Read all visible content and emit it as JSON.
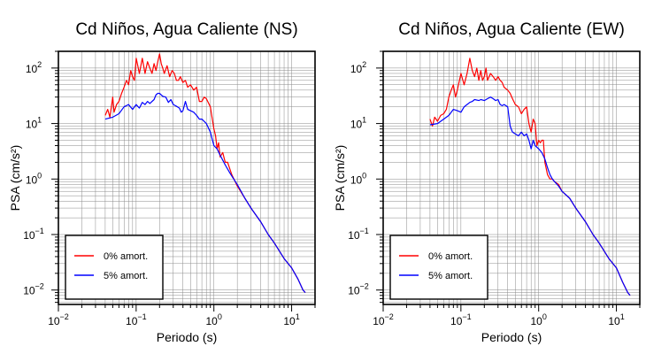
{
  "chart_data": [
    {
      "type": "line",
      "title": "Cd Niños, Agua Caliente (NS)",
      "xlabel": "Periodo (s)",
      "ylabel": "PSA (cm/s²)",
      "xscale": "log",
      "yscale": "log",
      "xlim": [
        0.01,
        20
      ],
      "ylim": [
        0.0055,
        200
      ],
      "grid": true,
      "legend_position": "lower-left",
      "x_ticks": [
        {
          "base": "10",
          "exp": "−2"
        },
        {
          "base": "10",
          "exp": "−1"
        },
        {
          "base": "10",
          "exp": "0"
        },
        {
          "base": "10",
          "exp": "1"
        }
      ],
      "y_ticks": [
        {
          "base": "10",
          "exp": "−2"
        },
        {
          "base": "10",
          "exp": "−1"
        },
        {
          "base": "10",
          "exp": "0"
        },
        {
          "base": "10",
          "exp": "1"
        },
        {
          "base": "10",
          "exp": "2"
        }
      ],
      "series": [
        {
          "name": "0% amort.",
          "color": "#ff0000",
          "points": [
            [
              0.04,
              14
            ],
            [
              0.043,
              18
            ],
            [
              0.046,
              13
            ],
            [
              0.05,
              30
            ],
            [
              0.052,
              16
            ],
            [
              0.056,
              22
            ],
            [
              0.06,
              25
            ],
            [
              0.065,
              35
            ],
            [
              0.07,
              45
            ],
            [
              0.075,
              60
            ],
            [
              0.08,
              50
            ],
            [
              0.085,
              90
            ],
            [
              0.09,
              70
            ],
            [
              0.095,
              60
            ],
            [
              0.1,
              150
            ],
            [
              0.105,
              110
            ],
            [
              0.11,
              80
            ],
            [
              0.12,
              150
            ],
            [
              0.13,
              80
            ],
            [
              0.14,
              130
            ],
            [
              0.15,
              100
            ],
            [
              0.16,
              80
            ],
            [
              0.17,
              120
            ],
            [
              0.18,
              90
            ],
            [
              0.19,
              130
            ],
            [
              0.2,
              180
            ],
            [
              0.21,
              120
            ],
            [
              0.22,
              100
            ],
            [
              0.23,
              80
            ],
            [
              0.25,
              110
            ],
            [
              0.27,
              70
            ],
            [
              0.29,
              90
            ],
            [
              0.31,
              80
            ],
            [
              0.33,
              60
            ],
            [
              0.35,
              60
            ],
            [
              0.37,
              70
            ],
            [
              0.4,
              55
            ],
            [
              0.43,
              60
            ],
            [
              0.46,
              45
            ],
            [
              0.5,
              50
            ],
            [
              0.55,
              40
            ],
            [
              0.6,
              45
            ],
            [
              0.65,
              25
            ],
            [
              0.7,
              25
            ],
            [
              0.75,
              30
            ],
            [
              0.8,
              28
            ],
            [
              0.9,
              20
            ],
            [
              1.0,
              8
            ],
            [
              1.05,
              6
            ],
            [
              1.1,
              3.5
            ],
            [
              1.15,
              4.5
            ],
            [
              1.2,
              2.5
            ],
            [
              1.3,
              3
            ],
            [
              1.4,
              2
            ],
            [
              1.5,
              2
            ],
            [
              1.7,
              1.2
            ],
            [
              2,
              0.75
            ],
            [
              2.5,
              0.45
            ],
            [
              3,
              0.3
            ],
            [
              4,
              0.17
            ],
            [
              5,
              0.1
            ],
            [
              6,
              0.07
            ],
            [
              7,
              0.05
            ],
            [
              8,
              0.037
            ],
            [
              10,
              0.025
            ],
            [
              12,
              0.016
            ],
            [
              14,
              0.01
            ],
            [
              15,
              0.009
            ]
          ]
        },
        {
          "name": "5% amort.",
          "color": "#0000ff",
          "points": [
            [
              0.04,
              12
            ],
            [
              0.05,
              13
            ],
            [
              0.06,
              15
            ],
            [
              0.07,
              20
            ],
            [
              0.08,
              22
            ],
            [
              0.09,
              18
            ],
            [
              0.1,
              22
            ],
            [
              0.11,
              19
            ],
            [
              0.12,
              24
            ],
            [
              0.13,
              22
            ],
            [
              0.14,
              25
            ],
            [
              0.15,
              23
            ],
            [
              0.17,
              27
            ],
            [
              0.18,
              33
            ],
            [
              0.19,
              35
            ],
            [
              0.2,
              35
            ],
            [
              0.22,
              31
            ],
            [
              0.24,
              30
            ],
            [
              0.26,
              24
            ],
            [
              0.28,
              27
            ],
            [
              0.3,
              22
            ],
            [
              0.32,
              21
            ],
            [
              0.34,
              20
            ],
            [
              0.36,
              19
            ],
            [
              0.38,
              16
            ],
            [
              0.4,
              17
            ],
            [
              0.43,
              25
            ],
            [
              0.46,
              18
            ],
            [
              0.5,
              17
            ],
            [
              0.55,
              16
            ],
            [
              0.6,
              14
            ],
            [
              0.65,
              12
            ],
            [
              0.7,
              12
            ],
            [
              0.8,
              10
            ],
            [
              0.9,
              7
            ],
            [
              1.0,
              4
            ],
            [
              1.1,
              3.5
            ],
            [
              1.2,
              2.7
            ],
            [
              1.4,
              1.8
            ],
            [
              1.6,
              1.3
            ],
            [
              1.8,
              1
            ],
            [
              2,
              0.8
            ],
            [
              2.5,
              0.45
            ],
            [
              3,
              0.3
            ],
            [
              4,
              0.17
            ],
            [
              5,
              0.1
            ],
            [
              6,
              0.07
            ],
            [
              7,
              0.05
            ],
            [
              8,
              0.037
            ],
            [
              10,
              0.025
            ],
            [
              12,
              0.016
            ],
            [
              14,
              0.01
            ],
            [
              15,
              0.009
            ]
          ]
        }
      ]
    },
    {
      "type": "line",
      "title": "Cd Niños, Agua Caliente (EW)",
      "xlabel": "Periodo (s)",
      "ylabel": "PSA (cm/s²)",
      "xscale": "log",
      "yscale": "log",
      "xlim": [
        0.01,
        20
      ],
      "ylim": [
        0.0055,
        200
      ],
      "grid": true,
      "legend_position": "lower-left",
      "x_ticks": [
        {
          "base": "10",
          "exp": "−2"
        },
        {
          "base": "10",
          "exp": "−1"
        },
        {
          "base": "10",
          "exp": "0"
        },
        {
          "base": "10",
          "exp": "1"
        }
      ],
      "y_ticks": [
        {
          "base": "10",
          "exp": "−2"
        },
        {
          "base": "10",
          "exp": "−1"
        },
        {
          "base": "10",
          "exp": "0"
        },
        {
          "base": "10",
          "exp": "1"
        },
        {
          "base": "10",
          "exp": "2"
        }
      ],
      "series": [
        {
          "name": "0% amort.",
          "color": "#ff0000",
          "points": [
            [
              0.04,
              12
            ],
            [
              0.043,
              9
            ],
            [
              0.046,
              13
            ],
            [
              0.05,
              11
            ],
            [
              0.055,
              14
            ],
            [
              0.06,
              15
            ],
            [
              0.065,
              18
            ],
            [
              0.07,
              30
            ],
            [
              0.075,
              40
            ],
            [
              0.08,
              50
            ],
            [
              0.085,
              30
            ],
            [
              0.09,
              40
            ],
            [
              0.1,
              80
            ],
            [
              0.11,
              50
            ],
            [
              0.12,
              80
            ],
            [
              0.13,
              150
            ],
            [
              0.14,
              90
            ],
            [
              0.15,
              70
            ],
            [
              0.16,
              100
            ],
            [
              0.17,
              60
            ],
            [
              0.18,
              90
            ],
            [
              0.19,
              60
            ],
            [
              0.2,
              70
            ],
            [
              0.21,
              100
            ],
            [
              0.22,
              60
            ],
            [
              0.24,
              80
            ],
            [
              0.26,
              70
            ],
            [
              0.28,
              60
            ],
            [
              0.3,
              70
            ],
            [
              0.32,
              60
            ],
            [
              0.34,
              55
            ],
            [
              0.36,
              45
            ],
            [
              0.4,
              40
            ],
            [
              0.43,
              35
            ],
            [
              0.46,
              28
            ],
            [
              0.5,
              22
            ],
            [
              0.55,
              20
            ],
            [
              0.6,
              15
            ],
            [
              0.65,
              18
            ],
            [
              0.7,
              20
            ],
            [
              0.75,
              10
            ],
            [
              0.8,
              7
            ],
            [
              0.85,
              12
            ],
            [
              0.9,
              10
            ],
            [
              0.95,
              4
            ],
            [
              1.0,
              5
            ],
            [
              1.05,
              4.5
            ],
            [
              1.1,
              5
            ],
            [
              1.15,
              5
            ],
            [
              1.2,
              2
            ],
            [
              1.3,
              1.2
            ],
            [
              1.4,
              1
            ],
            [
              1.5,
              1
            ],
            [
              1.6,
              0.9
            ],
            [
              1.8,
              0.8
            ],
            [
              2,
              0.6
            ],
            [
              2.5,
              0.45
            ],
            [
              3,
              0.3
            ],
            [
              4,
              0.17
            ],
            [
              5,
              0.1
            ],
            [
              6,
              0.07
            ],
            [
              7,
              0.05
            ],
            [
              8,
              0.037
            ],
            [
              10,
              0.025
            ],
            [
              12,
              0.014
            ],
            [
              14,
              0.009
            ],
            [
              15,
              0.008
            ]
          ]
        },
        {
          "name": "5% amort.",
          "color": "#0000ff",
          "points": [
            [
              0.04,
              9.5
            ],
            [
              0.05,
              10
            ],
            [
              0.06,
              12
            ],
            [
              0.07,
              14
            ],
            [
              0.08,
              18
            ],
            [
              0.09,
              17
            ],
            [
              0.1,
              16
            ],
            [
              0.11,
              20
            ],
            [
              0.12,
              22
            ],
            [
              0.13,
              24
            ],
            [
              0.14,
              25
            ],
            [
              0.15,
              27
            ],
            [
              0.17,
              26
            ],
            [
              0.18,
              27
            ],
            [
              0.2,
              26
            ],
            [
              0.22,
              28
            ],
            [
              0.24,
              30
            ],
            [
              0.26,
              28
            ],
            [
              0.28,
              26
            ],
            [
              0.3,
              27
            ],
            [
              0.32,
              22
            ],
            [
              0.34,
              21
            ],
            [
              0.36,
              22
            ],
            [
              0.4,
              20
            ],
            [
              0.43,
              9
            ],
            [
              0.46,
              7
            ],
            [
              0.5,
              6.5
            ],
            [
              0.55,
              6
            ],
            [
              0.6,
              7
            ],
            [
              0.65,
              6
            ],
            [
              0.7,
              6.5
            ],
            [
              0.75,
              5
            ],
            [
              0.8,
              3.5
            ],
            [
              0.85,
              5
            ],
            [
              0.9,
              4
            ],
            [
              1.0,
              3.5
            ],
            [
              1.1,
              3
            ],
            [
              1.2,
              2.3
            ],
            [
              1.3,
              1.6
            ],
            [
              1.4,
              1.2
            ],
            [
              1.5,
              1
            ],
            [
              1.6,
              0.9
            ],
            [
              1.8,
              0.75
            ],
            [
              2,
              0.6
            ],
            [
              2.5,
              0.45
            ],
            [
              3,
              0.3
            ],
            [
              4,
              0.17
            ],
            [
              5,
              0.1
            ],
            [
              6,
              0.07
            ],
            [
              7,
              0.05
            ],
            [
              8,
              0.037
            ],
            [
              10,
              0.025
            ],
            [
              12,
              0.014
            ],
            [
              14,
              0.009
            ],
            [
              15,
              0.008
            ]
          ]
        }
      ]
    }
  ]
}
